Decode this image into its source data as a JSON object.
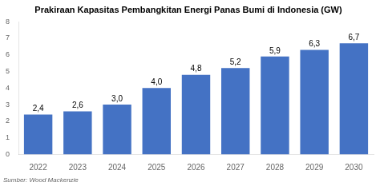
{
  "chart_data": {
    "type": "bar",
    "title": "Prakiraan Kapasitas Pembangkitan Energi Panas Bumi di Indonesia (GW)",
    "source": "Sumber: Wood Mackenzie",
    "categories": [
      "2022",
      "2023",
      "2024",
      "2025",
      "2026",
      "2027",
      "2028",
      "2029",
      "2030"
    ],
    "values": [
      2.4,
      2.6,
      3.0,
      4.0,
      4.8,
      5.2,
      5.9,
      6.3,
      6.7
    ],
    "value_labels": [
      "2,4",
      "2,6",
      "3,0",
      "4,0",
      "4,8",
      "5,2",
      "5,9",
      "6,3",
      "6,7"
    ],
    "data_labels": true,
    "color": "#4472C4",
    "ylim": [
      0,
      8
    ],
    "yticks": [
      0,
      1,
      2,
      3,
      4,
      5,
      6,
      7,
      8
    ],
    "grid": false
  }
}
